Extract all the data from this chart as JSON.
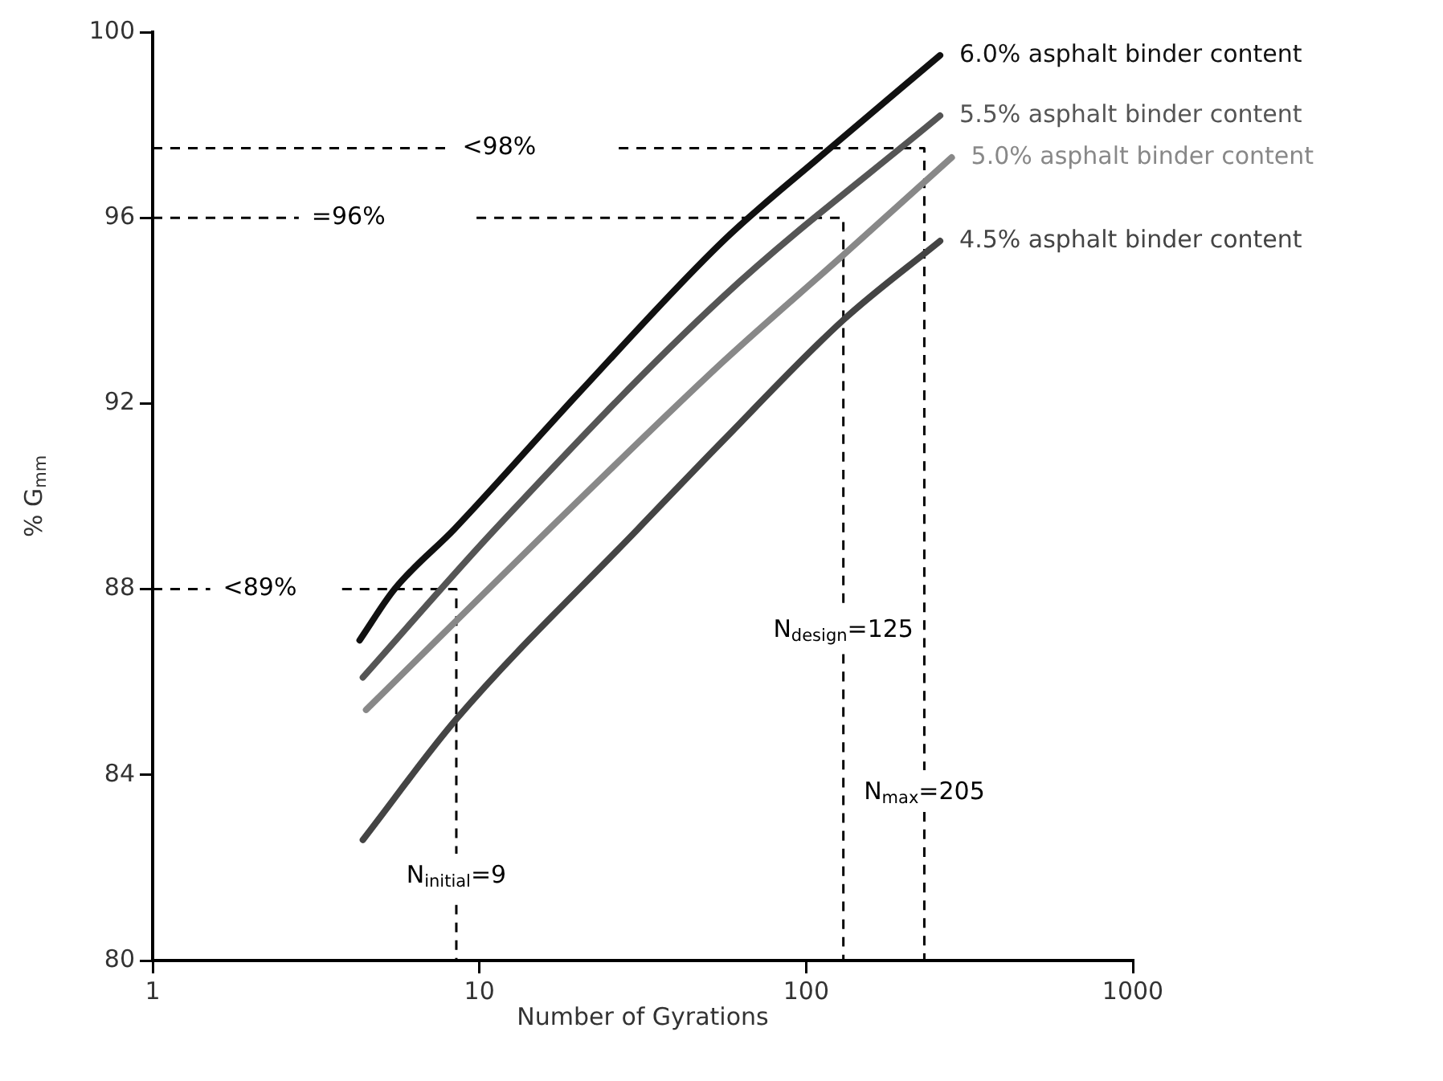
{
  "chart_data": {
    "type": "line",
    "xlabel": "Number of Gyrations",
    "ylabel": "% G$_{mm}$",
    "log": "x",
    "marker": "none",
    "xlim": [
      1,
      1000
    ],
    "xticks": [
      1,
      10,
      100,
      1000
    ],
    "ylim": [
      80,
      100
    ],
    "yticks": [
      80,
      84,
      88,
      92,
      96,
      100
    ],
    "series": [
      {
        "name": "6.0% asphalt binder content",
        "color": "#111111",
        "x": [
          4.3,
          5.5,
          8.4,
          20,
          55.7,
          114,
          257
        ],
        "values": [
          86.9,
          88.0,
          89.3,
          92.2,
          95.5,
          97.4,
          99.5
        ]
      },
      {
        "name": "5.5% asphalt binder content",
        "color": "#555555",
        "x": [
          4.4,
          11.2,
          55.7,
          257
        ],
        "values": [
          86.1,
          89.3,
          94.3,
          98.2
        ]
      },
      {
        "name": "5.0% asphalt binder content",
        "color": "#888888",
        "x": [
          4.5,
          16.4,
          55.7,
          130,
          279
        ],
        "values": [
          85.4,
          89.3,
          92.9,
          95.2,
          97.3
        ]
      },
      {
        "name": "4.5% asphalt binder content",
        "color": "#444444",
        "x": [
          4.4,
          8.5,
          30.6,
          55.7,
          130,
          257
        ],
        "values": [
          82.6,
          85.2,
          89.3,
          91.2,
          93.8,
          95.5
        ]
      },
      {
        "type": "line",
        "name": "<98%",
        "line_style": "dashed",
        "color": "#000000",
        "x": [
          1,
          8.1
        ],
        "values": [
          97.5,
          97.5
        ]
      },
      {
        "type": "line",
        "name": "N$_{max}$=205",
        "line_style": "dashed",
        "color": "#000000",
        "x": [
          26.7,
          230,
          230
        ],
        "values": [
          97.5,
          97.5,
          84.1
        ]
      },
      {
        "type": "line",
        "line_style": "dashed",
        "color": "#000000",
        "x": [
          230,
          230
        ],
        "values": [
          83.2,
          80
        ]
      },
      {
        "type": "line",
        "name": "=96%",
        "line_style": "dashed",
        "color": "#000000",
        "x": [
          1,
          2.8
        ],
        "values": [
          96,
          96
        ]
      },
      {
        "type": "line",
        "name": "N$_{design}$=125",
        "line_style": "dashed",
        "color": "#000000",
        "x": [
          9.8,
          130,
          130
        ],
        "values": [
          96,
          96,
          87.6
        ]
      },
      {
        "type": "line",
        "line_style": "dashed",
        "color": "#000000",
        "x": [
          130,
          130
        ],
        "values": [
          86.6,
          80
        ]
      },
      {
        "type": "line",
        "name": "<89%",
        "line_style": "dashed",
        "color": "#000000",
        "x": [
          1,
          1.5
        ],
        "values": [
          88,
          88
        ]
      },
      {
        "type": "line",
        "name": "N$_{initial}$=9",
        "line_style": "dashed",
        "color": "#000000",
        "x": [
          3.8,
          8.5,
          8.5
        ],
        "values": [
          88,
          88,
          82.3
        ]
      },
      {
        "type": "line",
        "line_style": "dashed",
        "color": "#000000",
        "x": [
          8.5,
          8.5
        ],
        "values": [
          81.2,
          80
        ]
      }
    ]
  }
}
